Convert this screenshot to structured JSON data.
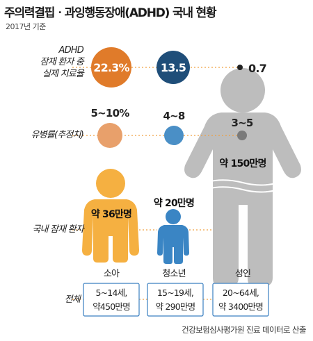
{
  "header": {
    "title": "주의력결핍ㆍ과잉행동장애(ADHD) 국내 현황",
    "subtitle": "2017년 기준"
  },
  "row_labels": {
    "treatment_line1": "ADHD",
    "treatment_line2": "잠재 환자 중",
    "treatment_line3": "실제 치료율",
    "prevalence": "유병률(추정치)",
    "latent": "국내 잠재 환자",
    "total": "전체"
  },
  "source": "건강보험심사평가원 진료 데이터로 산출",
  "colors": {
    "child": "#f5b041",
    "teen": "#3a85c4",
    "adult": "#bdbdbd",
    "treat_child": "#e07b2a",
    "treat_teen": "#1f4e79",
    "prev_child": "#e8a06b",
    "prev_teen": "#4a8fc6",
    "prev_adult": "#7a7a7a",
    "dot_line": "#f0a040",
    "box_border": "#3a7fc0"
  },
  "chart_data": {
    "type": "table",
    "groups": [
      "소아",
      "청소년",
      "성인"
    ],
    "treatment_rate_labels": [
      "22.3%",
      "13.5",
      "0.7"
    ],
    "treatment_rate_values": [
      22.3,
      13.5,
      0.7
    ],
    "prevalence_labels": [
      "5~10%",
      "4~8",
      "3~5"
    ],
    "latent_patient_labels": [
      "약 36만명",
      "약 20만명",
      "약 150만명"
    ],
    "total_line1": [
      "5~14세,",
      "15~19세,",
      "20~64세,"
    ],
    "total_line2": [
      "약450만명",
      "약 290만명",
      "약 3400만명"
    ]
  }
}
